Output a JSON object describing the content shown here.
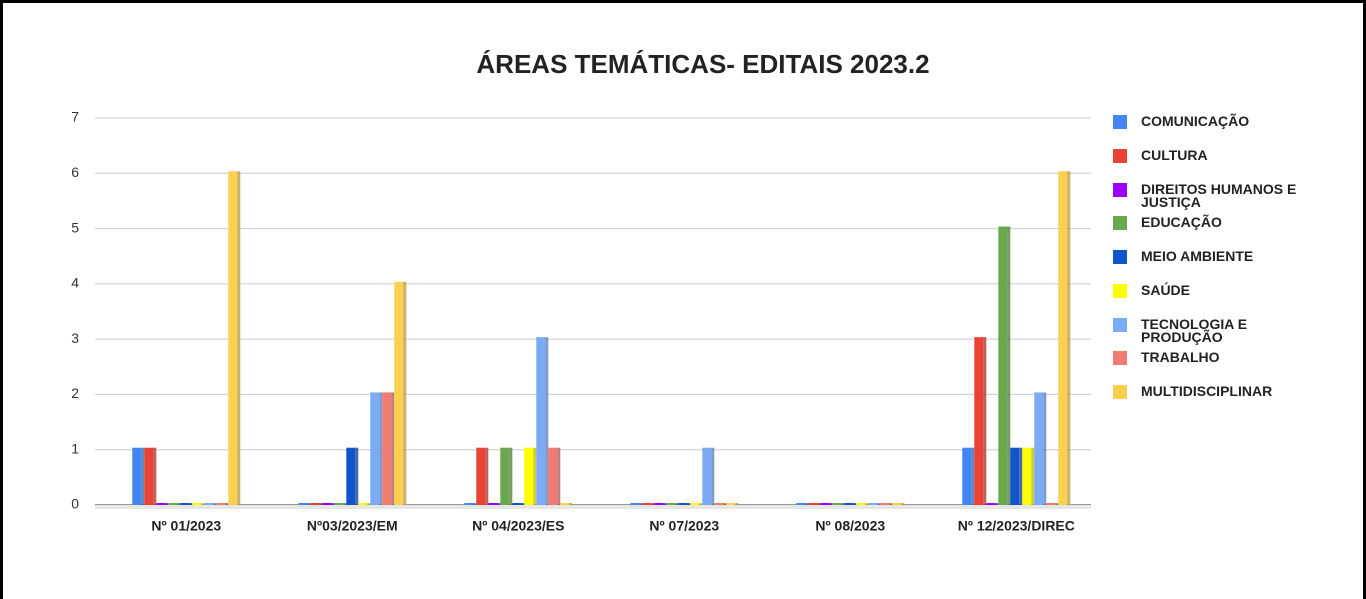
{
  "chart_data": {
    "type": "bar",
    "title": "ÁREAS TEMÁTICAS- EDITAIS 2023.2",
    "categories": [
      "Nº 01/2023",
      "Nº03/2023/EM",
      "Nº 04/2023/ES",
      "Nº 07/2023",
      "Nº 08/2023",
      "Nº 12/2023/DIREC"
    ],
    "series": [
      {
        "name": "COMUNICAÇÃO",
        "color": "#4285f4",
        "values": [
          1,
          0,
          0,
          0,
          0,
          1
        ]
      },
      {
        "name": "CULTURA",
        "color": "#ea4335",
        "values": [
          1,
          0,
          1,
          0,
          0,
          3
        ]
      },
      {
        "name": "DIREITOS HUMANOS E JUSTIÇA",
        "color": "#9900ff",
        "values": [
          0,
          0,
          0,
          0,
          0,
          0
        ]
      },
      {
        "name": "EDUCAÇÃO",
        "color": "#6aa84f",
        "values": [
          0,
          0,
          1,
          0,
          0,
          5
        ]
      },
      {
        "name": "MEIO AMBIENTE",
        "color": "#1155cc",
        "values": [
          0,
          1,
          0,
          0,
          0,
          1
        ]
      },
      {
        "name": "SAÚDE",
        "color": "#ffff00",
        "values": [
          0,
          0,
          1,
          0,
          0,
          1
        ]
      },
      {
        "name": "TECNOLOGIA E PRODUÇÃO",
        "color": "#7baaf7",
        "values": [
          0,
          2,
          3,
          1,
          0,
          2
        ]
      },
      {
        "name": "TRABALHO",
        "color": "#f07b72",
        "values": [
          0,
          2,
          1,
          0,
          0,
          0
        ]
      },
      {
        "name": "MULTIDISCIPLINAR",
        "color": "#fcd04f",
        "values": [
          6,
          4,
          0,
          0,
          0,
          6
        ]
      }
    ],
    "ylim": [
      0,
      7
    ],
    "yticks": [
      0,
      1,
      2,
      3,
      4,
      5,
      6,
      7
    ],
    "grid": true,
    "legend": "right"
  }
}
